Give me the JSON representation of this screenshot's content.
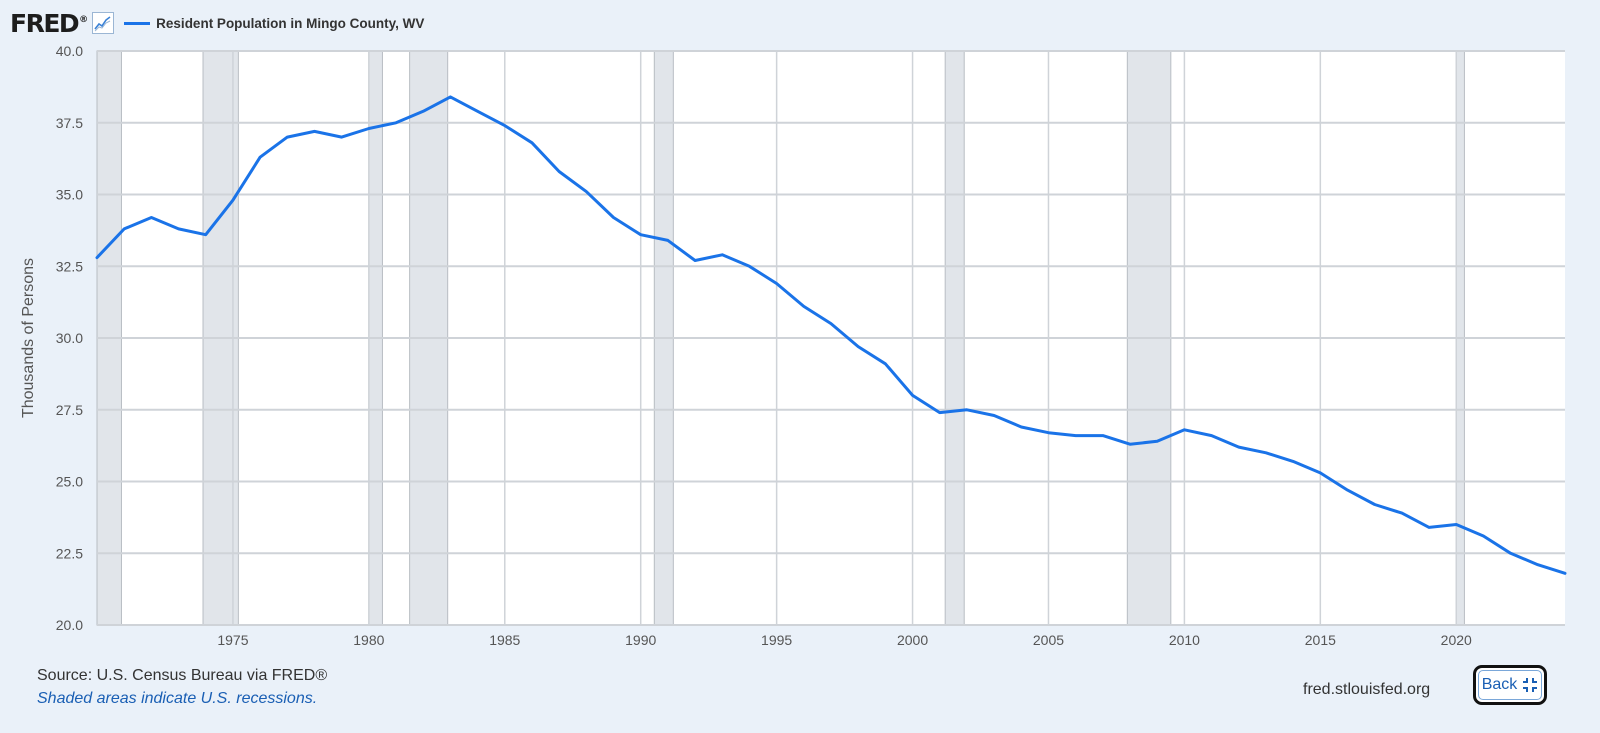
{
  "header": {
    "logo_text": "FRED",
    "logo_mark": "®",
    "logo_icon": "line-graph-icon",
    "series_label": "Resident Population in Mingo County, WV"
  },
  "colors": {
    "line": "#1a73e8",
    "recession": "#e1e5ea",
    "grid": "#cfd3d8",
    "background": "#eaf1f9"
  },
  "footer": {
    "source": "Source: U.S. Census Bureau via FRED®",
    "note": "Shaded areas indicate U.S. recessions.",
    "url": "fred.stlouisfed.org",
    "back_label": "Back",
    "back_icon": "collapse-icon"
  },
  "chart_data": {
    "type": "line",
    "title": "",
    "xlabel": "",
    "ylabel": "Thousands of Persons",
    "xlim": [
      1970.0,
      2024.0
    ],
    "ylim": [
      20.0,
      40.0
    ],
    "y_ticks": [
      "20.0",
      "22.5",
      "25.0",
      "27.5",
      "30.0",
      "32.5",
      "35.0",
      "37.5",
      "40.0"
    ],
    "x_ticks": [
      "1975",
      "1980",
      "1985",
      "1990",
      "1995",
      "2000",
      "2005",
      "2010",
      "2015",
      "2020"
    ],
    "grid": true,
    "legend": "top-left",
    "recessions": [
      [
        1970.0,
        1970.9
      ],
      [
        1973.9,
        1975.2
      ],
      [
        1980.0,
        1980.5
      ],
      [
        1981.5,
        1982.9
      ],
      [
        1990.5,
        1991.2
      ],
      [
        2001.2,
        2001.9
      ],
      [
        2007.9,
        2009.5
      ],
      [
        2020.0,
        2020.3
      ]
    ],
    "series": [
      {
        "name": "Resident Population in Mingo County, WV",
        "x": [
          1970,
          1971,
          1972,
          1973,
          1974,
          1975,
          1976,
          1977,
          1978,
          1979,
          1980,
          1981,
          1982,
          1983,
          1984,
          1985,
          1986,
          1987,
          1988,
          1989,
          1990,
          1991,
          1992,
          1993,
          1994,
          1995,
          1996,
          1997,
          1998,
          1999,
          2000,
          2001,
          2002,
          2003,
          2004,
          2005,
          2006,
          2007,
          2008,
          2009,
          2010,
          2011,
          2012,
          2013,
          2014,
          2015,
          2016,
          2017,
          2018,
          2019,
          2020,
          2021,
          2022,
          2023,
          2024
        ],
        "values": [
          32.8,
          33.8,
          34.2,
          33.8,
          33.6,
          34.8,
          36.3,
          37.0,
          37.2,
          37.0,
          37.3,
          37.5,
          37.9,
          38.4,
          37.9,
          37.4,
          36.8,
          35.8,
          35.1,
          34.2,
          33.6,
          33.4,
          32.7,
          32.9,
          32.5,
          31.9,
          31.1,
          30.5,
          29.7,
          29.1,
          28.0,
          27.4,
          27.5,
          27.3,
          26.9,
          26.7,
          26.6,
          26.6,
          26.3,
          26.4,
          26.8,
          26.6,
          26.2,
          26.0,
          25.7,
          25.3,
          24.7,
          24.2,
          23.9,
          23.4,
          23.5,
          23.1,
          22.5,
          22.1,
          21.8
        ]
      }
    ]
  }
}
